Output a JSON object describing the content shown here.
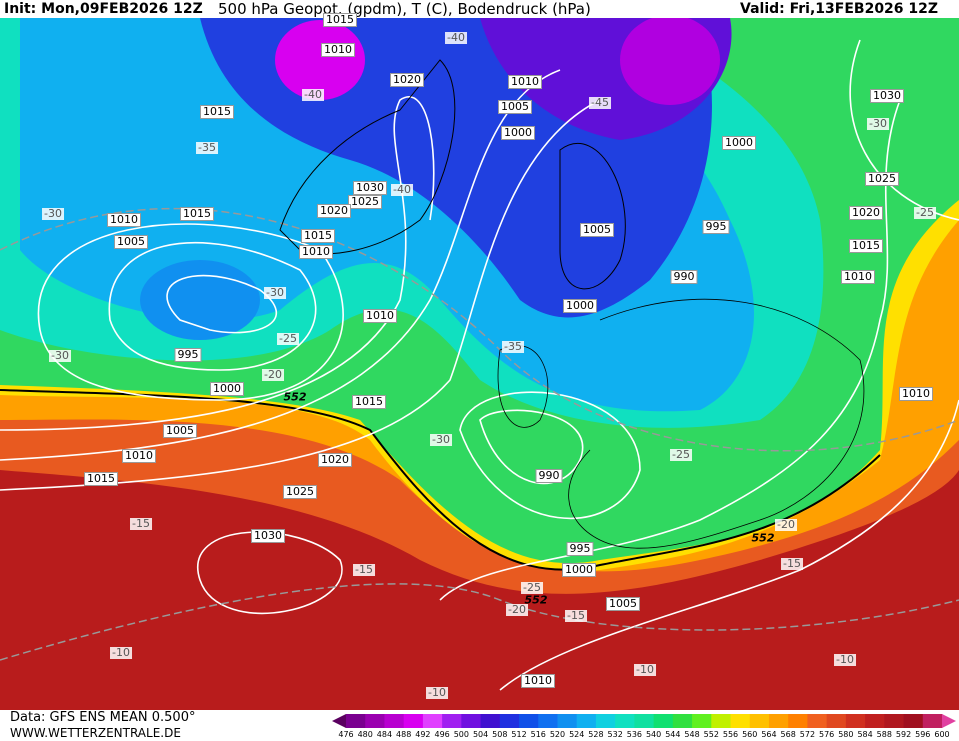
{
  "header": {
    "init": "Init: Mon,09FEB2026 12Z",
    "title": "500 hPa Geopot. (gpdm), T (C), Bodendruck (hPa)",
    "valid": "Valid: Fri,13FEB2026 12Z"
  },
  "footer": {
    "source": "Data: GFS ENS MEAN 0.500°",
    "site": "WWW.WETTERZENTRALE.DE"
  },
  "colorbar": {
    "ticks": [
      "476",
      "480",
      "484",
      "488",
      "492",
      "496",
      "500",
      "504",
      "508",
      "512",
      "516",
      "520",
      "524",
      "528",
      "532",
      "536",
      "540",
      "544",
      "548",
      "552",
      "556",
      "560",
      "564",
      "568",
      "572",
      "576",
      "580",
      "584",
      "588",
      "592",
      "596",
      "600"
    ],
    "colors": [
      "#5a0060",
      "#7a0090",
      "#9a00b0",
      "#b800d0",
      "#d800f0",
      "#e040ff",
      "#a020f0",
      "#7010e0",
      "#4010d0",
      "#2030e0",
      "#1050e8",
      "#1070f0",
      "#1090f0",
      "#10b0f0",
      "#10d0e0",
      "#10e0c0",
      "#10e0a0",
      "#10e070",
      "#30e040",
      "#60f020",
      "#c0f000",
      "#ffe000",
      "#ffc000",
      "#ffa000",
      "#ff8000",
      "#f06020",
      "#e04820",
      "#d03020",
      "#c02020",
      "#b01820",
      "#a01020",
      "#c02060",
      "#e040a0"
    ]
  },
  "isobar_labels": [
    "1015",
    "1010",
    "1020",
    "1010",
    "1005",
    "1000",
    "1000",
    "1015",
    "1030",
    "1025",
    "1020",
    "1015",
    "1010",
    "995",
    "990",
    "1005",
    "1000",
    "1030",
    "1025",
    "1020",
    "1015",
    "1010",
    "1010",
    "1005",
    "1015",
    "995",
    "1000",
    "1010",
    "1015",
    "1005",
    "1010",
    "1015",
    "1020",
    "1025",
    "1030",
    "990",
    "995",
    "1000",
    "1005",
    "1010",
    "1010"
  ],
  "temperature_labels": [
    "-40",
    "-40",
    "-45",
    "-35",
    "-30",
    "-25",
    "-30",
    "-40",
    "-30",
    "-25",
    "-30",
    "-20",
    "-35",
    "-30",
    "-25",
    "-20",
    "-15",
    "-15",
    "-15",
    "-25",
    "-20",
    "-15",
    "-10",
    "-10",
    "-10",
    "-10"
  ],
  "geopotential_labels": [
    "552",
    "552",
    "552"
  ]
}
